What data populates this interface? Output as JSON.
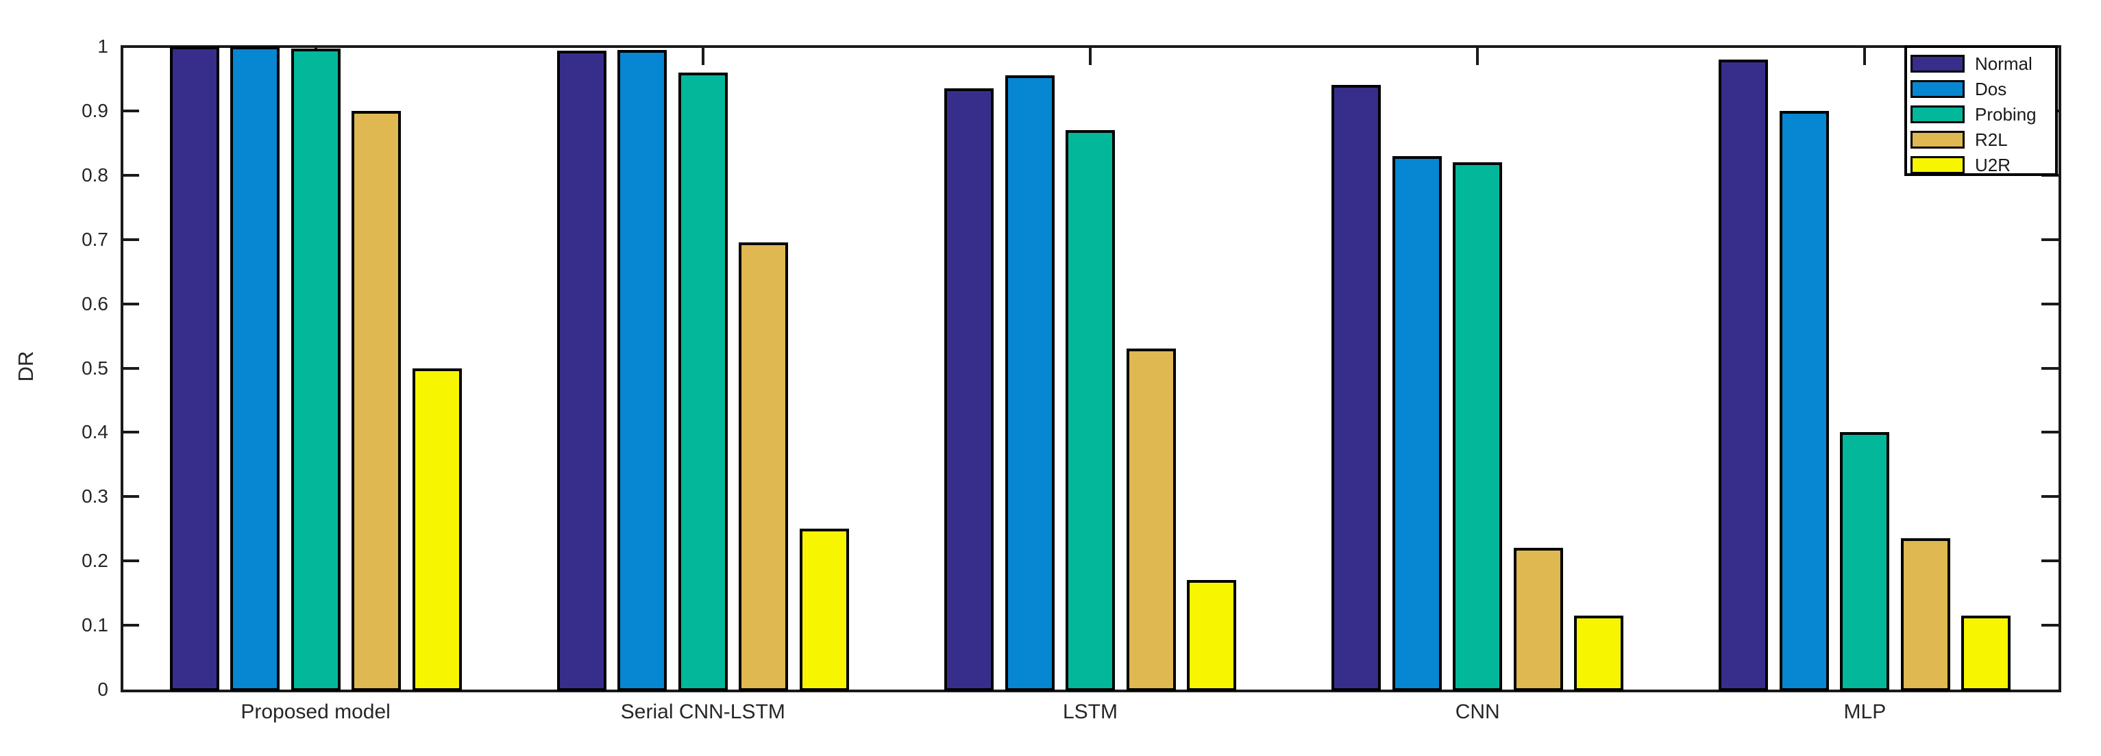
{
  "figure": {
    "background": "#ffffff",
    "axis_color": "#1a1a1a",
    "text_color": "#262626",
    "bar_border_color": "#000000"
  },
  "chart_data": {
    "type": "bar",
    "title": "",
    "xlabel": "",
    "ylabel": "DR",
    "ylim": [
      0,
      1
    ],
    "ytick_step": 0.1,
    "ytick_labels": [
      "0",
      "0.1",
      "0.2",
      "0.3",
      "0.4",
      "0.5",
      "0.6",
      "0.7",
      "0.8",
      "0.9",
      "1"
    ],
    "grid": false,
    "legend_position": "top-right",
    "legend_entries": [
      "Normal",
      "Dos",
      "Probing",
      "R2L",
      "U2R"
    ],
    "categories": [
      "Proposed model",
      "Serial CNN-LSTM",
      "LSTM",
      "CNN",
      "MLP"
    ],
    "series": [
      {
        "name": "Normal",
        "color": "#372E8C",
        "values": [
          1.0,
          0.994,
          0.935,
          0.94,
          0.98
        ]
      },
      {
        "name": "Dos",
        "color": "#0786D2",
        "values": [
          1.0,
          0.995,
          0.955,
          0.83,
          0.9
        ]
      },
      {
        "name": "Probing",
        "color": "#03B79B",
        "values": [
          0.997,
          0.96,
          0.87,
          0.82,
          0.4
        ]
      },
      {
        "name": "R2L",
        "color": "#DFB851",
        "values": [
          0.9,
          0.695,
          0.53,
          0.22,
          0.235
        ]
      },
      {
        "name": "U2R",
        "color": "#F8F501",
        "values": [
          0.5,
          0.25,
          0.17,
          0.115,
          0.115
        ]
      }
    ]
  }
}
